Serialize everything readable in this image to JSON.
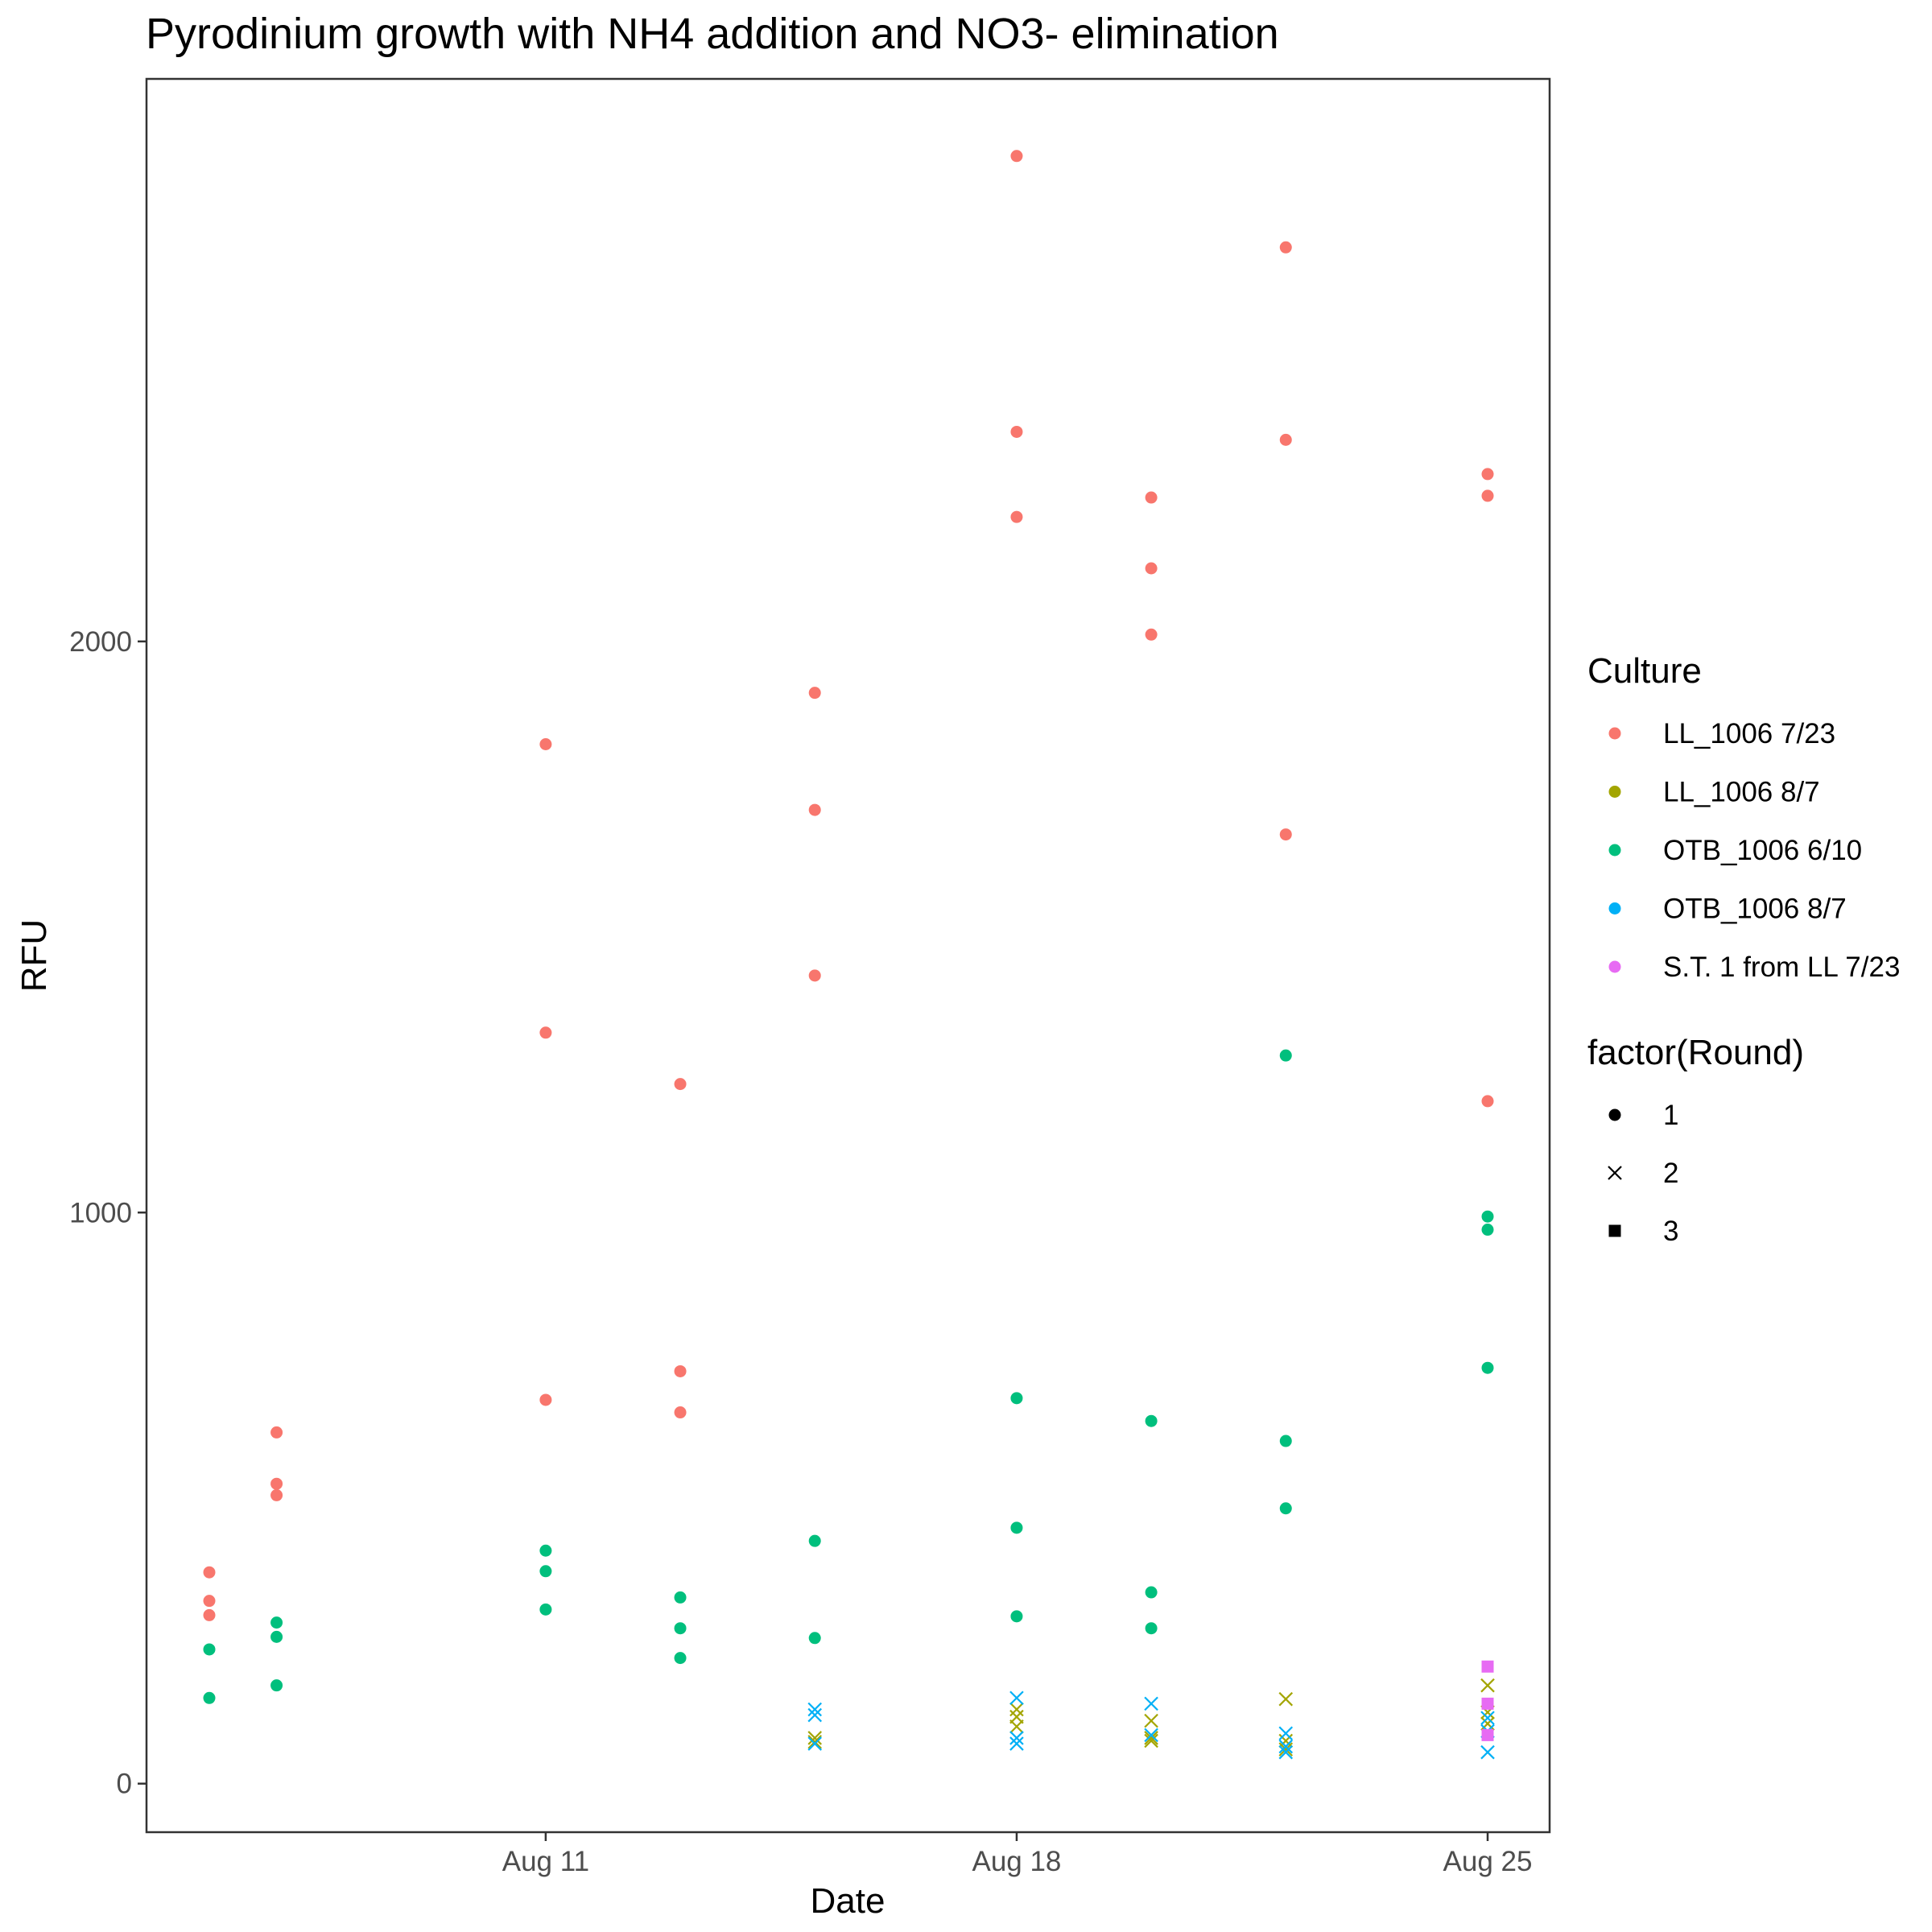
{
  "chart_data": {
    "type": "scatter",
    "title": "Pyrodinium growth with NH4 addition and NO3- elimination",
    "xlabel": "Date",
    "ylabel": "RFU",
    "x_ticks": [
      {
        "value": "2023-08-11",
        "label": "Aug 11"
      },
      {
        "value": "2023-08-18",
        "label": "Aug 18"
      },
      {
        "value": "2023-08-25",
        "label": "Aug 25"
      }
    ],
    "y_ticks": [
      {
        "value": 0,
        "label": "0"
      },
      {
        "value": 1000,
        "label": "1000"
      },
      {
        "value": 2000,
        "label": "2000"
      }
    ],
    "xlim": [
      "2023-08-06",
      "2023-08-25"
    ],
    "ylim": [
      -85,
      2985
    ],
    "grid": false,
    "legend_position": "right",
    "color_legend": {
      "title": "Culture",
      "entries": [
        {
          "key": "LL_1006 7/23",
          "label": "LL_1006 7/23",
          "color": "#F8766D"
        },
        {
          "key": "LL_1006 8/7",
          "label": "LL_1006 8/7",
          "color": "#A3A500"
        },
        {
          "key": "OTB_1006 6/10",
          "label": "OTB_1006 6/10",
          "color": "#00BF7D"
        },
        {
          "key": "OTB_1006 8/7",
          "label": "OTB_1006 8/7",
          "color": "#00B0F6"
        },
        {
          "key": "S.T. 1 from LL 7/23",
          "label": "S.T. 1 from LL 7/23",
          "color": "#E76BF3"
        }
      ]
    },
    "shape_legend": {
      "title": "factor(Round)",
      "entries": [
        {
          "label": "1",
          "shape": "circle"
        },
        {
          "label": "2",
          "shape": "cross"
        },
        {
          "label": "3",
          "shape": "square"
        }
      ]
    },
    "series": [
      {
        "culture": "LL_1006 7/23",
        "round": 1,
        "points": [
          {
            "x": "2023-08-06",
            "y": 370
          },
          {
            "x": "2023-08-06",
            "y": 320
          },
          {
            "x": "2023-08-06",
            "y": 295
          },
          {
            "x": "2023-08-07",
            "y": 615
          },
          {
            "x": "2023-08-07",
            "y": 525
          },
          {
            "x": "2023-08-07",
            "y": 505
          },
          {
            "x": "2023-08-11",
            "y": 1820
          },
          {
            "x": "2023-08-11",
            "y": 1315
          },
          {
            "x": "2023-08-11",
            "y": 672
          },
          {
            "x": "2023-08-13",
            "y": 1225
          },
          {
            "x": "2023-08-13",
            "y": 722
          },
          {
            "x": "2023-08-13",
            "y": 650
          },
          {
            "x": "2023-08-15",
            "y": 1910
          },
          {
            "x": "2023-08-15",
            "y": 1705
          },
          {
            "x": "2023-08-15",
            "y": 1415
          },
          {
            "x": "2023-08-18",
            "y": 2850
          },
          {
            "x": "2023-08-18",
            "y": 2367
          },
          {
            "x": "2023-08-18",
            "y": 2218
          },
          {
            "x": "2023-08-20",
            "y": 2252
          },
          {
            "x": "2023-08-20",
            "y": 2128
          },
          {
            "x": "2023-08-20",
            "y": 2012
          },
          {
            "x": "2023-08-22",
            "y": 2690
          },
          {
            "x": "2023-08-22",
            "y": 2353
          },
          {
            "x": "2023-08-22",
            "y": 1662
          },
          {
            "x": "2023-08-25",
            "y": 2293
          },
          {
            "x": "2023-08-25",
            "y": 2255
          },
          {
            "x": "2023-08-25",
            "y": 1195
          }
        ]
      },
      {
        "culture": "OTB_1006 6/10",
        "round": 1,
        "points": [
          {
            "x": "2023-08-06",
            "y": 235
          },
          {
            "x": "2023-08-06",
            "y": 150
          },
          {
            "x": "2023-08-07",
            "y": 282
          },
          {
            "x": "2023-08-07",
            "y": 257
          },
          {
            "x": "2023-08-07",
            "y": 172
          },
          {
            "x": "2023-08-11",
            "y": 408
          },
          {
            "x": "2023-08-11",
            "y": 372
          },
          {
            "x": "2023-08-11",
            "y": 305
          },
          {
            "x": "2023-08-13",
            "y": 326
          },
          {
            "x": "2023-08-13",
            "y": 272
          },
          {
            "x": "2023-08-13",
            "y": 220
          },
          {
            "x": "2023-08-15",
            "y": 425
          },
          {
            "x": "2023-08-15",
            "y": 255
          },
          {
            "x": "2023-08-18",
            "y": 675
          },
          {
            "x": "2023-08-18",
            "y": 448
          },
          {
            "x": "2023-08-18",
            "y": 293
          },
          {
            "x": "2023-08-20",
            "y": 635
          },
          {
            "x": "2023-08-20",
            "y": 335
          },
          {
            "x": "2023-08-20",
            "y": 272
          },
          {
            "x": "2023-08-22",
            "y": 1275
          },
          {
            "x": "2023-08-22",
            "y": 600
          },
          {
            "x": "2023-08-22",
            "y": 482
          },
          {
            "x": "2023-08-25",
            "y": 993
          },
          {
            "x": "2023-08-25",
            "y": 970
          },
          {
            "x": "2023-08-25",
            "y": 728
          }
        ]
      },
      {
        "culture": "LL_1006 8/7",
        "round": 2,
        "points": [
          {
            "x": "2023-08-15",
            "y": 80
          },
          {
            "x": "2023-08-15",
            "y": 73
          },
          {
            "x": "2023-08-18",
            "y": 130
          },
          {
            "x": "2023-08-18",
            "y": 117
          },
          {
            "x": "2023-08-18",
            "y": 100
          },
          {
            "x": "2023-08-20",
            "y": 110
          },
          {
            "x": "2023-08-20",
            "y": 80
          },
          {
            "x": "2023-08-20",
            "y": 75
          },
          {
            "x": "2023-08-22",
            "y": 148
          },
          {
            "x": "2023-08-22",
            "y": 75
          },
          {
            "x": "2023-08-22",
            "y": 60
          },
          {
            "x": "2023-08-25",
            "y": 172
          },
          {
            "x": "2023-08-25",
            "y": 125
          },
          {
            "x": "2023-08-25",
            "y": 105
          }
        ]
      },
      {
        "culture": "OTB_1006 8/7",
        "round": 2,
        "points": [
          {
            "x": "2023-08-15",
            "y": 130
          },
          {
            "x": "2023-08-15",
            "y": 120
          },
          {
            "x": "2023-08-15",
            "y": 70
          },
          {
            "x": "2023-08-18",
            "y": 150
          },
          {
            "x": "2023-08-18",
            "y": 80
          },
          {
            "x": "2023-08-18",
            "y": 70
          },
          {
            "x": "2023-08-20",
            "y": 140
          },
          {
            "x": "2023-08-20",
            "y": 85
          },
          {
            "x": "2023-08-22",
            "y": 88
          },
          {
            "x": "2023-08-22",
            "y": 65
          },
          {
            "x": "2023-08-22",
            "y": 55
          },
          {
            "x": "2023-08-25",
            "y": 115
          },
          {
            "x": "2023-08-25",
            "y": 92
          },
          {
            "x": "2023-08-25",
            "y": 55
          }
        ]
      },
      {
        "culture": "S.T. 1 from LL 7/23",
        "round": 3,
        "points": [
          {
            "x": "2023-08-25",
            "y": 205
          },
          {
            "x": "2023-08-25",
            "y": 140
          },
          {
            "x": "2023-08-25",
            "y": 85
          }
        ]
      }
    ]
  }
}
